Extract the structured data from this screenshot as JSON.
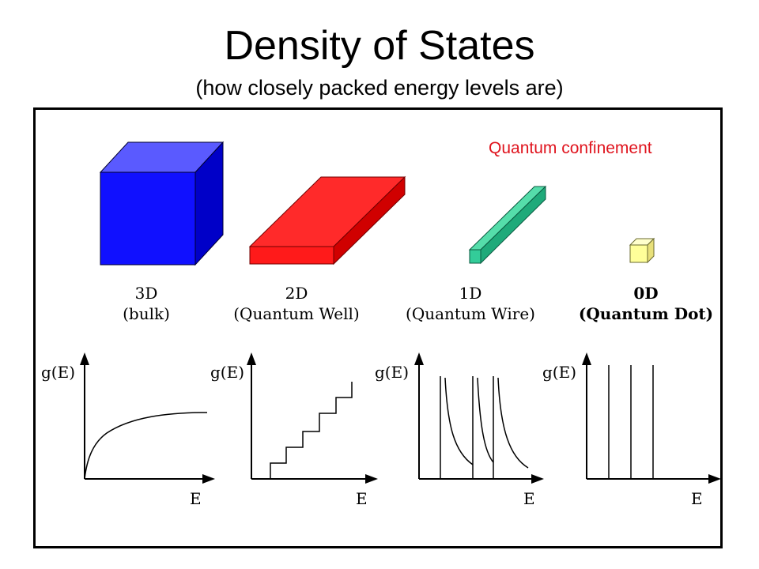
{
  "title": "Density of States",
  "subtitle": "(how closely packed energy levels are)",
  "confinement_label": "Quantum confinement",
  "colors": {
    "accent_red": "#e0141e",
    "cube_3d": "#1010ff",
    "slab_2d": "#ff2a2a",
    "wire_1d": "#33cc99",
    "dot_0d": "#ffff99"
  },
  "structures": [
    {
      "dim": "3D",
      "name": "(bulk)",
      "icon": "blue-cube-icon"
    },
    {
      "dim": "2D",
      "name": "(Quantum Well)",
      "icon": "red-slab-icon"
    },
    {
      "dim": "1D",
      "name": "(Quantum Wire)",
      "icon": "green-wire-icon"
    },
    {
      "dim": "0D",
      "name": "(Quantum Dot)",
      "icon": "yellow-dot-icon"
    }
  ],
  "graphs": [
    {
      "ylabel": "g(E)",
      "xlabel": "E",
      "shape": "sqrt-curve"
    },
    {
      "ylabel": "g(E)",
      "xlabel": "E",
      "shape": "staircase"
    },
    {
      "ylabel": "g(E)",
      "xlabel": "E",
      "shape": "inverse-sqrt-peaks"
    },
    {
      "ylabel": "g(E)",
      "xlabel": "E",
      "shape": "delta-functions"
    }
  ]
}
